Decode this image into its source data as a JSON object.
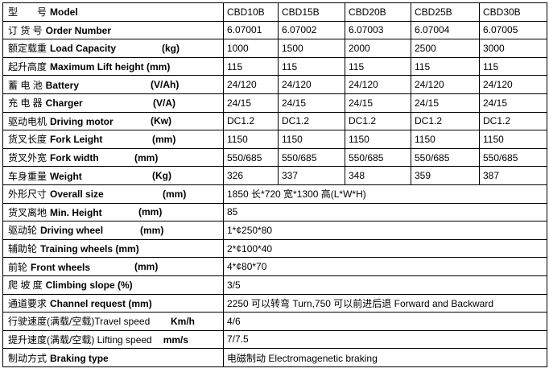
{
  "header": [
    "CBD10B",
    "CBD15B",
    "CBD20B",
    "CBD25B",
    "CBD30B"
  ],
  "label": {
    "cn": "型　　号",
    "en": "Model"
  },
  "rows": [
    {
      "cn": "订 货 号",
      "en": "Order Number",
      "cells": [
        "6.07001",
        "6.07002",
        "6.07003",
        "6.07004",
        "6.07005"
      ]
    },
    {
      "cn": "额定载重",
      "en": "Load Capacity",
      "unit": "(kg)",
      "cells": [
        "1000",
        "1500",
        "2000",
        "2500",
        "3000"
      ]
    },
    {
      "cn": "起升高度",
      "en": "Maximum Lift height (mm)",
      "cells": [
        "115",
        "115",
        "115",
        "115",
        "115"
      ]
    },
    {
      "cn": "蓄 电 池",
      "en": "Battery",
      "unit": "(V/Ah)",
      "cells": [
        "24/120",
        "24/120",
        "24/120",
        "24/120",
        "24/120"
      ]
    },
    {
      "cn": "充 电 器",
      "en": "Charger",
      "unit": "(V/A)",
      "cells": [
        "24/15",
        "24/15",
        "24/15",
        "24/15",
        "24/15"
      ]
    },
    {
      "cn": "驱动电机",
      "en": "Driving motor",
      "unit": "(Kw)",
      "cells": [
        "DC1.2",
        "DC1.2",
        "DC1.2",
        "DC1.2",
        "DC1.2"
      ]
    },
    {
      "cn": "货叉长度",
      "en": "Fork Leight",
      "unit": "(mm)",
      "cells": [
        "1150",
        "1150",
        "1150",
        "1150",
        "1150"
      ]
    },
    {
      "cn": "货叉外宽",
      "en": "Fork width",
      "unit": "(mm)",
      "cells": [
        "550/685",
        "550/685",
        "550/685",
        "550/685",
        "550/685"
      ]
    },
    {
      "cn": "车身重量",
      "en": "Weight",
      "unit": "(Kg)",
      "cells": [
        "326",
        "337",
        "348",
        "359",
        "387"
      ]
    },
    {
      "cn": "外形尺寸",
      "en": "Overall size",
      "unit": "(mm)",
      "cells": [
        "1850 长*720 宽*1300 高(L*W*H)"
      ]
    },
    {
      "cn": "货叉离地",
      "en": "Min. Height",
      "unit": "(mm)",
      "cells": [
        "85"
      ]
    },
    {
      "cn": "驱动轮",
      "en": "Driving wheel",
      "unit": "(mm)",
      "cells": [
        "1*¢250*80"
      ]
    },
    {
      "cn": "辅助轮",
      "en": "Training wheels (mm)",
      "cells": [
        "2*¢100*40"
      ]
    },
    {
      "cn": "前轮",
      "en": "Front wheels",
      "unit": "(mm)",
      "cells": [
        "4*¢80*70"
      ]
    },
    {
      "cn": "爬 坡 度",
      "en": "Climbing slope (%)",
      "cells": [
        "3/5"
      ]
    },
    {
      "cn": "通道要求",
      "en": "Channel request (mm)",
      "cells": [
        "2250 可以转弯 Turn,750 可以前进后退 Forward and Backward"
      ]
    },
    {
      "cn": "行驶速度(满载/空载)Travel speed",
      "unit": "Km/h",
      "cells": [
        "4/6"
      ]
    },
    {
      "cn": "提升速度(满载/空载) Lifting speed",
      "unit": "mm/s",
      "cells": [
        "7/7.5"
      ]
    },
    {
      "cn": "制动方式",
      "en": "Braking type",
      "cells": [
        "电磁制动 Electromagenetic braking"
      ]
    }
  ]
}
